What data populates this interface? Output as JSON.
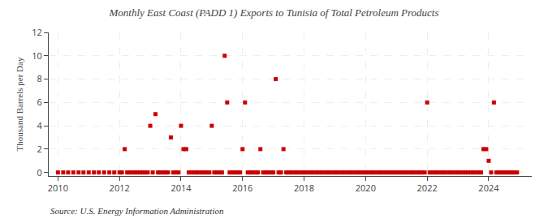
{
  "chart_data": {
    "type": "scatter",
    "title": "Monthly East Coast (PADD 1) Exports to Tunisia of Total Petroleum Products",
    "ylabel": "Thousand Barrels per Day",
    "annotations": [
      "Source: U.S. Energy Information Administration"
    ],
    "color": "#cc0000",
    "marker": "square",
    "grid": true,
    "xlim": [
      2009.7,
      2025.4
    ],
    "ylim": [
      -0.3,
      12
    ],
    "xticks": [
      2010,
      2012,
      2014,
      2016,
      2018,
      2020,
      2022,
      2024
    ],
    "yticks": [
      0,
      2,
      4,
      6,
      8,
      10,
      12
    ],
    "x": [
      2010.0,
      2010.17,
      2010.33,
      2010.5,
      2010.67,
      2010.83,
      2011.0,
      2011.17,
      2011.33,
      2011.5,
      2011.67,
      2011.83,
      2012.0,
      2012.08,
      2012.17,
      2012.25,
      2012.33,
      2012.42,
      2012.5,
      2012.58,
      2012.67,
      2012.75,
      2012.83,
      2012.92,
      2013.0,
      2013.08,
      2013.17,
      2013.25,
      2013.33,
      2013.42,
      2013.5,
      2013.58,
      2013.67,
      2013.75,
      2013.83,
      2013.92,
      2014.0,
      2014.08,
      2014.17,
      2014.25,
      2014.33,
      2014.42,
      2014.5,
      2014.58,
      2014.67,
      2014.75,
      2014.83,
      2014.92,
      2015.0,
      2015.08,
      2015.17,
      2015.25,
      2015.33,
      2015.42,
      2015.5,
      2015.58,
      2015.67,
      2015.75,
      2015.83,
      2015.92,
      2016.0,
      2016.08,
      2016.17,
      2016.25,
      2016.33,
      2016.42,
      2016.5,
      2016.58,
      2016.67,
      2016.75,
      2016.83,
      2016.92,
      2017.0,
      2017.08,
      2017.17,
      2017.25,
      2017.33,
      2017.42,
      2017.5,
      2017.58,
      2017.67,
      2017.75,
      2017.83,
      2017.92,
      2018.0,
      2018.08,
      2018.17,
      2018.25,
      2018.33,
      2018.42,
      2018.5,
      2018.58,
      2018.67,
      2018.75,
      2018.83,
      2018.92,
      2019.0,
      2019.08,
      2019.17,
      2019.25,
      2019.33,
      2019.42,
      2019.5,
      2019.58,
      2019.67,
      2019.75,
      2019.83,
      2019.92,
      2020.0,
      2020.08,
      2020.17,
      2020.25,
      2020.33,
      2020.42,
      2020.5,
      2020.58,
      2020.67,
      2020.75,
      2020.83,
      2020.92,
      2021.0,
      2021.08,
      2021.17,
      2021.25,
      2021.33,
      2021.42,
      2021.5,
      2021.58,
      2021.67,
      2021.75,
      2021.83,
      2021.92,
      2022.0,
      2022.08,
      2022.17,
      2022.25,
      2022.33,
      2022.42,
      2022.5,
      2022.58,
      2022.67,
      2022.75,
      2022.83,
      2022.92,
      2023.0,
      2023.08,
      2023.17,
      2023.25,
      2023.33,
      2023.42,
      2023.5,
      2023.58,
      2023.67,
      2023.75,
      2023.83,
      2023.92,
      2024.0,
      2024.08,
      2024.17,
      2024.25,
      2024.33,
      2024.42,
      2024.5,
      2024.58,
      2024.67,
      2024.75,
      2024.83,
      2024.92
    ],
    "values": [
      0,
      0,
      0,
      0,
      0,
      0,
      0,
      0,
      0,
      0,
      0,
      0,
      0,
      0,
      2,
      0,
      0,
      0,
      0,
      0,
      0,
      0,
      0,
      0,
      4,
      0,
      5,
      0,
      0,
      0,
      0,
      0,
      3,
      0,
      0,
      0,
      4,
      2,
      2,
      0,
      0,
      0,
      0,
      0,
      0,
      0,
      0,
      0,
      4,
      0,
      0,
      0,
      0,
      10,
      6,
      0,
      0,
      0,
      0,
      0,
      2,
      6,
      0,
      0,
      0,
      0,
      0,
      2,
      0,
      0,
      0,
      0,
      0,
      8,
      0,
      0,
      2,
      0,
      0,
      0,
      0,
      0,
      0,
      0,
      0,
      0,
      0,
      0,
      0,
      0,
      0,
      0,
      0,
      0,
      0,
      0,
      0,
      0,
      0,
      0,
      0,
      0,
      0,
      0,
      0,
      0,
      0,
      0,
      0,
      0,
      0,
      0,
      0,
      0,
      0,
      0,
      0,
      0,
      0,
      0,
      0,
      0,
      0,
      0,
      0,
      0,
      0,
      0,
      0,
      0,
      0,
      0,
      6,
      0,
      0,
      0,
      0,
      0,
      0,
      0,
      0,
      0,
      0,
      0,
      0,
      0,
      0,
      0,
      0,
      0,
      0,
      0,
      0,
      0,
      2,
      2,
      1,
      0,
      6,
      0,
      0,
      0,
      0,
      0,
      0,
      0,
      0,
      0
    ]
  }
}
